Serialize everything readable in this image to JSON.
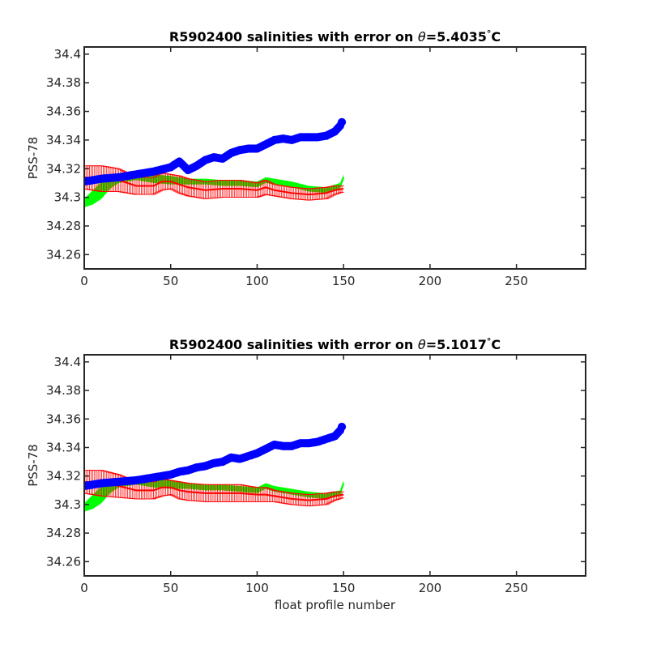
{
  "chart_data": [
    {
      "type": "scatter",
      "title_prefix": "R5902400 salinities with error on ",
      "title_theta": "θ",
      "title_value": "=5.4035",
      "title_deg": "°",
      "title_unit": "C",
      "xlabel": "",
      "ylabel": "PSS-78",
      "xlim": [
        0,
        290
      ],
      "ylim": [
        34.25,
        34.405
      ],
      "xticks": [
        0,
        50,
        100,
        150,
        200,
        250
      ],
      "yticks": [
        34.26,
        34.28,
        34.3,
        34.32,
        34.34,
        34.36,
        34.38,
        34.4
      ],
      "ytick_labels": [
        "34.26",
        "34.28",
        "34.3",
        "34.32",
        "34.34",
        "34.36",
        "34.38",
        "34.4"
      ],
      "grid": false,
      "series_colors": {
        "float": "#0000ff",
        "mapped": "#00ff00",
        "calibrated": "#ff0000"
      },
      "float_x": [
        0,
        10,
        20,
        30,
        40,
        50,
        55,
        60,
        65,
        70,
        75,
        80,
        85,
        90,
        95,
        100,
        105,
        110,
        115,
        120,
        125,
        130,
        135,
        140,
        145,
        148,
        150
      ],
      "float_y": [
        34.311,
        34.313,
        34.314,
        34.316,
        34.318,
        34.321,
        34.325,
        34.319,
        34.322,
        34.326,
        34.328,
        34.327,
        34.331,
        34.333,
        34.334,
        34.334,
        34.337,
        34.34,
        34.341,
        34.34,
        34.342,
        34.342,
        34.342,
        34.343,
        34.346,
        34.35,
        34.355
      ],
      "mapped_x": [
        0,
        5,
        10,
        15,
        20,
        30,
        40,
        50,
        60,
        70,
        80,
        90,
        100,
        105,
        110,
        120,
        130,
        140,
        148,
        150
      ],
      "mapped_y": [
        34.296,
        34.3,
        34.305,
        34.31,
        34.313,
        34.315,
        34.313,
        34.312,
        34.311,
        34.311,
        34.31,
        34.31,
        34.309,
        34.312,
        34.311,
        34.309,
        34.306,
        34.305,
        34.308,
        34.314
      ],
      "mapped_err": [
        0.003,
        0.005,
        0.006,
        0.004,
        0.003,
        0.003,
        0.003,
        0.003,
        0.002,
        0.002,
        0.002,
        0.002,
        0.002,
        0.002,
        0.002,
        0.002,
        0.002,
        0.002,
        0.002,
        0.002
      ],
      "cal_x": [
        0,
        10,
        20,
        30,
        40,
        45,
        50,
        55,
        60,
        70,
        80,
        90,
        100,
        105,
        110,
        120,
        130,
        140,
        145,
        150
      ],
      "cal_y": [
        34.314,
        34.313,
        34.312,
        34.308,
        34.308,
        34.311,
        34.311,
        34.309,
        34.307,
        34.305,
        34.306,
        34.306,
        34.305,
        34.307,
        34.305,
        34.303,
        34.302,
        34.303,
        34.305,
        34.306
      ],
      "cal_err": [
        0.008,
        0.009,
        0.008,
        0.006,
        0.006,
        0.006,
        0.005,
        0.006,
        0.006,
        0.006,
        0.006,
        0.006,
        0.005,
        0.005,
        0.004,
        0.004,
        0.004,
        0.004,
        0.003,
        0.002
      ]
    },
    {
      "type": "scatter",
      "title_prefix": "R5902400 salinities with error on ",
      "title_theta": "θ",
      "title_value": "=5.1017",
      "title_deg": "°",
      "title_unit": "C",
      "xlabel": "float profile number",
      "ylabel": "PSS-78",
      "xlim": [
        0,
        290
      ],
      "ylim": [
        34.25,
        34.405
      ],
      "xticks": [
        0,
        50,
        100,
        150,
        200,
        250
      ],
      "yticks": [
        34.26,
        34.28,
        34.3,
        34.32,
        34.34,
        34.36,
        34.38,
        34.4
      ],
      "ytick_labels": [
        "34.26",
        "34.28",
        "34.3",
        "34.32",
        "34.34",
        "34.36",
        "34.38",
        "34.4"
      ],
      "grid": false,
      "series_colors": {
        "float": "#0000ff",
        "mapped": "#00ff00",
        "calibrated": "#ff0000"
      },
      "float_x": [
        0,
        10,
        20,
        30,
        40,
        50,
        55,
        60,
        65,
        70,
        75,
        80,
        85,
        90,
        95,
        100,
        105,
        110,
        115,
        120,
        125,
        130,
        135,
        140,
        145,
        148,
        150
      ],
      "float_y": [
        34.313,
        34.315,
        34.316,
        34.317,
        34.319,
        34.321,
        34.323,
        34.324,
        34.326,
        34.327,
        34.329,
        34.33,
        34.333,
        34.332,
        34.334,
        34.336,
        34.339,
        34.342,
        34.341,
        34.341,
        34.343,
        34.343,
        34.344,
        34.346,
        34.348,
        34.352,
        34.357
      ],
      "mapped_x": [
        0,
        5,
        10,
        15,
        20,
        30,
        40,
        50,
        60,
        70,
        80,
        90,
        100,
        105,
        110,
        120,
        130,
        140,
        148,
        150
      ],
      "mapped_y": [
        34.298,
        34.302,
        34.307,
        34.312,
        34.315,
        34.317,
        34.315,
        34.314,
        34.313,
        34.312,
        34.312,
        34.311,
        34.31,
        34.313,
        34.311,
        34.309,
        34.307,
        34.306,
        34.308,
        34.315
      ],
      "mapped_err": [
        0.003,
        0.005,
        0.006,
        0.004,
        0.003,
        0.003,
        0.003,
        0.003,
        0.002,
        0.002,
        0.002,
        0.002,
        0.002,
        0.002,
        0.002,
        0.002,
        0.002,
        0.002,
        0.002,
        0.002
      ],
      "cal_x": [
        0,
        10,
        20,
        30,
        40,
        45,
        50,
        55,
        60,
        70,
        80,
        90,
        100,
        105,
        110,
        120,
        130,
        140,
        145,
        150
      ],
      "cal_y": [
        34.316,
        34.315,
        34.313,
        34.31,
        34.31,
        34.312,
        34.312,
        34.31,
        34.309,
        34.308,
        34.308,
        34.308,
        34.307,
        34.307,
        34.306,
        34.304,
        34.303,
        34.304,
        34.306,
        34.307
      ],
      "cal_err": [
        0.008,
        0.009,
        0.008,
        0.006,
        0.006,
        0.006,
        0.005,
        0.006,
        0.006,
        0.006,
        0.006,
        0.006,
        0.005,
        0.005,
        0.004,
        0.004,
        0.004,
        0.004,
        0.003,
        0.002
      ]
    }
  ]
}
